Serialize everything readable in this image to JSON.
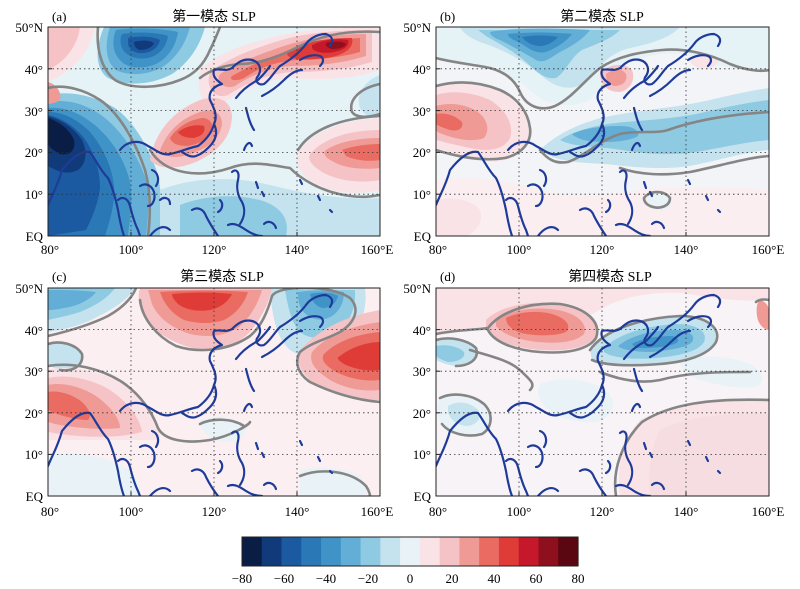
{
  "panels": [
    {
      "id": "a",
      "letter": "(a)",
      "title": "第一模态  SLP"
    },
    {
      "id": "b",
      "letter": "(b)",
      "title": "第二模态  SLP"
    },
    {
      "id": "c",
      "letter": "(c)",
      "title": "第三模态  SLP"
    },
    {
      "id": "d",
      "letter": "(d)",
      "title": "第四模态  SLP"
    }
  ],
  "axes": {
    "lon_ticks": [
      "80°",
      "100°",
      "120°",
      "140°",
      "160°E"
    ],
    "lat_ticks": [
      "50°N",
      "40°",
      "30°",
      "20°",
      "10°",
      "EQ"
    ],
    "lon_range": [
      80,
      160
    ],
    "lat_range": [
      0,
      50
    ]
  },
  "colorbar": {
    "labels": [
      "−80",
      "−60",
      "−40",
      "−20",
      "0",
      "20",
      "40",
      "60",
      "80"
    ],
    "levels": [
      -80,
      -70,
      -60,
      -50,
      -40,
      -30,
      -20,
      -10,
      0,
      10,
      20,
      30,
      40,
      50,
      60,
      70,
      80
    ],
    "colors": [
      "#0a1d45",
      "#103a7a",
      "#1b5aa0",
      "#2a78b6",
      "#3f93c7",
      "#62aed6",
      "#8fcae3",
      "#c4e3ef",
      "#e9f3f7",
      "#f9e3e7",
      "#f5c3c6",
      "#f09a96",
      "#ea6b62",
      "#e03c37",
      "#c5182a",
      "#8e0f1e",
      "#5a0712"
    ]
  }
}
